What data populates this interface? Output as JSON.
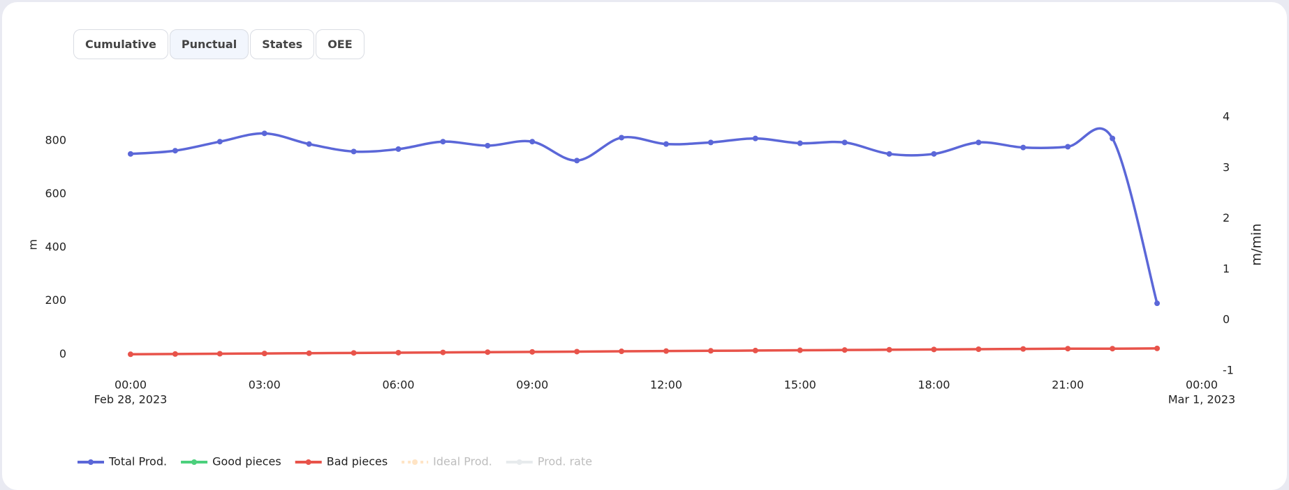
{
  "tabs": [
    "Cumulative",
    "Punctual",
    "States",
    "OEE"
  ],
  "active_tab": 1,
  "chart_data": {
    "type": "line",
    "y_label": "m",
    "y2_label": "m/min",
    "x": [
      0,
      1,
      2,
      3,
      4,
      5,
      6,
      7,
      8,
      9,
      10,
      11,
      12,
      13,
      14,
      15,
      16,
      17,
      18,
      19,
      20,
      21,
      22,
      23
    ],
    "xlim": [
      0,
      24
    ],
    "xticks": [
      {
        "value": 0,
        "label": "00:00",
        "date": "Feb 28, 2023"
      },
      {
        "value": 3,
        "label": "03:00"
      },
      {
        "value": 6,
        "label": "06:00"
      },
      {
        "value": 9,
        "label": "09:00"
      },
      {
        "value": 12,
        "label": "12:00"
      },
      {
        "value": 15,
        "label": "15:00"
      },
      {
        "value": 18,
        "label": "18:00"
      },
      {
        "value": 21,
        "label": "21:00"
      },
      {
        "value": 24,
        "label": "00:00",
        "date": "Mar 1, 2023"
      }
    ],
    "ylim": [
      -62,
      889
    ],
    "yticks": [
      0,
      200,
      400,
      600,
      800
    ],
    "y2lim": [
      -1,
      4
    ],
    "y2ticks": [
      -1,
      0,
      1,
      2,
      3,
      4
    ],
    "legend": "bottom-left",
    "series": [
      {
        "name": "Total Prod.",
        "color": "#5b67d8",
        "values": [
          751,
          763,
          797,
          828,
          788,
          760,
          769,
          797,
          782,
          797,
          726,
          812,
          788,
          794,
          809,
          791,
          794,
          751,
          751,
          794,
          775,
          778,
          809,
          191
        ]
      },
      {
        "name": "Good pieces",
        "color": "#4cd07d",
        "values": [
          null,
          null,
          null,
          null,
          null,
          null,
          null,
          null,
          null,
          null,
          null,
          null,
          null,
          null,
          null,
          null,
          null,
          null,
          null,
          null,
          null,
          null,
          null,
          null
        ]
      },
      {
        "name": "Bad pieces",
        "color": "#e8534a",
        "values": [
          0,
          1,
          2,
          3,
          4,
          5,
          6,
          7,
          8,
          9,
          10,
          11,
          12,
          13,
          14,
          15,
          16,
          17,
          18,
          19,
          20,
          21,
          21,
          22
        ]
      },
      {
        "name": "Ideal Prod.",
        "color": "#ffcf96",
        "dashed": true,
        "hidden": true
      },
      {
        "name": "Prod. rate",
        "color": "#d5dbe0",
        "axis": "y2",
        "hidden": true
      }
    ]
  }
}
